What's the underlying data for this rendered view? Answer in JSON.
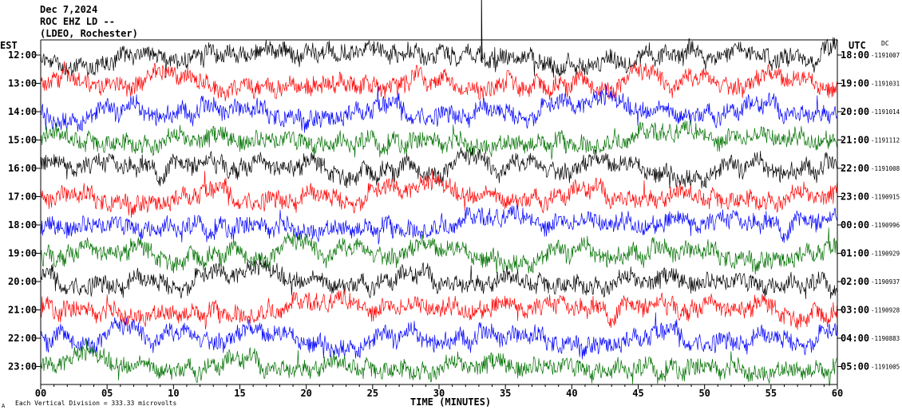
{
  "header": {
    "date": "Dec 7,2024",
    "station": "ROC EHZ LD --",
    "location": "(LDEO, Rochester)"
  },
  "left_axis_label": "EST",
  "right_axis_label": "UTC",
  "dc_label": "DC",
  "footer": {
    "scale_note": "Each Vertical Division =  333.33 microvolts",
    "corner_mark": "A"
  },
  "colors": {
    "cycle": [
      "#000000",
      "#ff0000",
      "#0000ff",
      "#007000"
    ]
  },
  "chart_data": {
    "type": "line",
    "xlabel": "TIME (MINUTES)",
    "xlim": [
      0,
      60
    ],
    "x_ticks": [
      "00",
      "05",
      "10",
      "15",
      "20",
      "25",
      "30",
      "35",
      "40",
      "45",
      "50",
      "55",
      "60"
    ],
    "rows": [
      {
        "est": "12:00",
        "utc": "18:00",
        "dc": "-1191007"
      },
      {
        "est": "13:00",
        "utc": "19:00",
        "dc": "-1191031"
      },
      {
        "est": "14:00",
        "utc": "20:00",
        "dc": "-1191014"
      },
      {
        "est": "15:00",
        "utc": "21:00",
        "dc": "-1191112"
      },
      {
        "est": "16:00",
        "utc": "22:00",
        "dc": "-1191008"
      },
      {
        "est": "17:00",
        "utc": "23:00",
        "dc": "-1190915"
      },
      {
        "est": "18:00",
        "utc": "00:00",
        "dc": "-1190996"
      },
      {
        "est": "19:00",
        "utc": "01:00",
        "dc": "-1190929"
      },
      {
        "est": "20:00",
        "utc": "02:00",
        "dc": "-1190937"
      },
      {
        "est": "21:00",
        "utc": "03:00",
        "dc": "-1190928"
      },
      {
        "est": "22:00",
        "utc": "04:00",
        "dc": "-1190883"
      },
      {
        "est": "23:00",
        "utc": "05:00",
        "dc": "-1191005"
      }
    ]
  }
}
